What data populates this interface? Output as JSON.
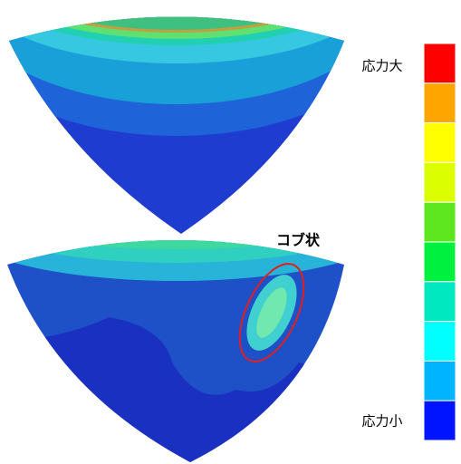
{
  "legend": {
    "high_label": "応力大",
    "low_label": "応力小",
    "colors": [
      "#ff0000",
      "#ffa500",
      "#ffff00",
      "#dcff00",
      "#5ee61e",
      "#00f040",
      "#00e8c0",
      "#00ffff",
      "#00b4ff",
      "#0014ff"
    ]
  },
  "annotation": "コブ状"
}
